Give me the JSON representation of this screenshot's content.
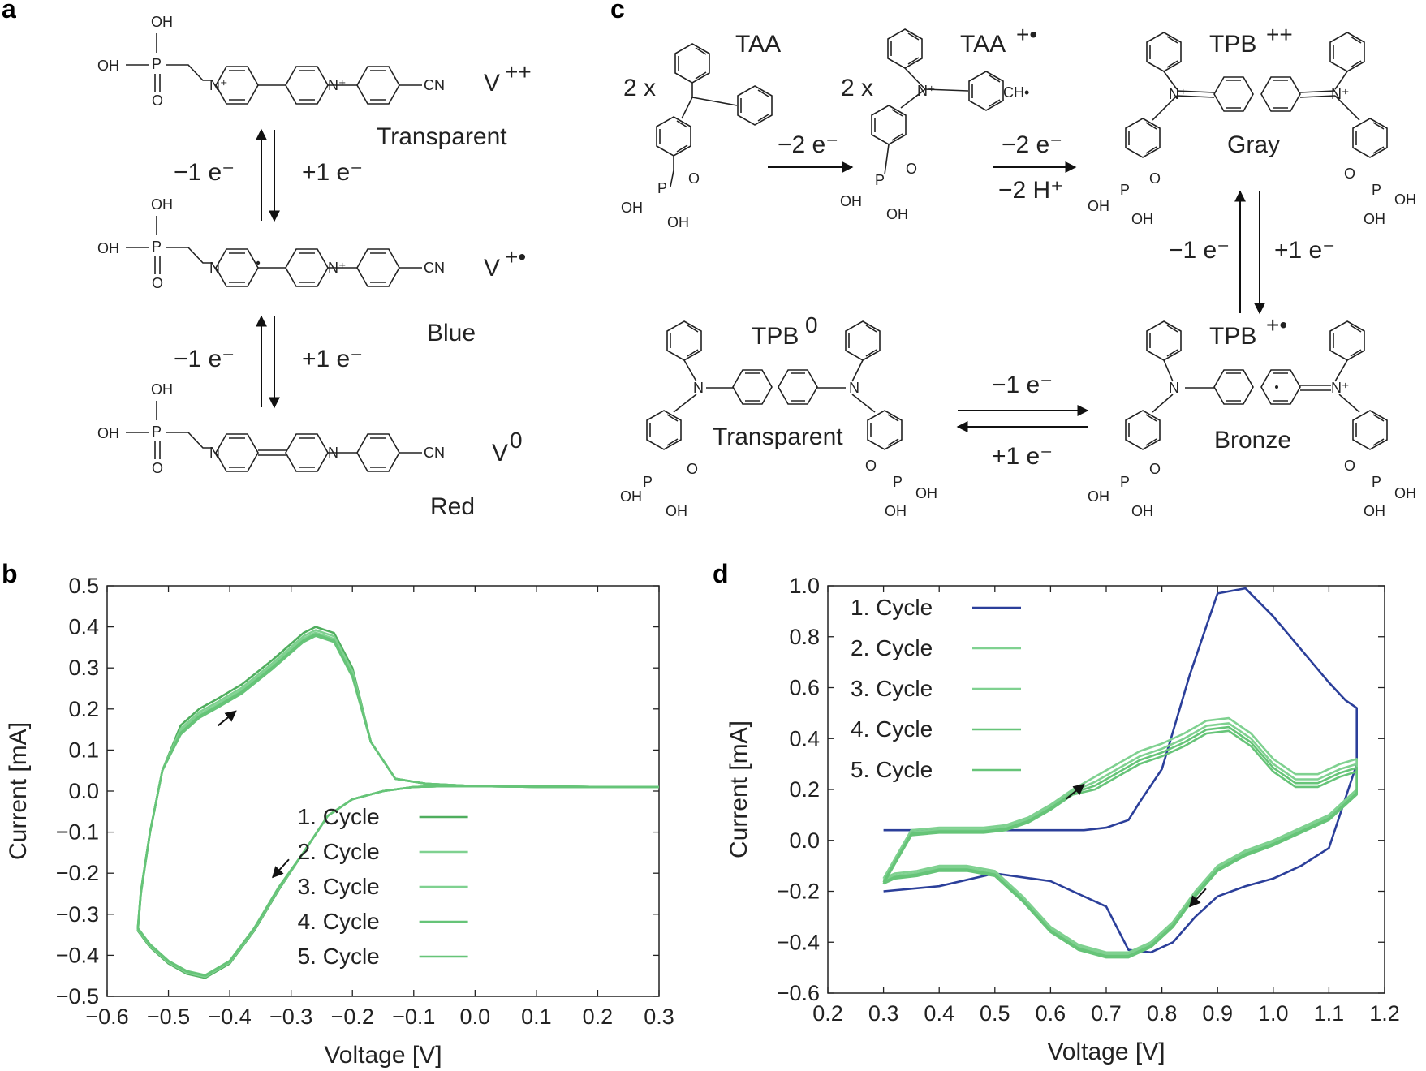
{
  "panels": {
    "a": "a",
    "b": "b",
    "c": "c",
    "d": "d"
  },
  "panel_a": {
    "species": [
      {
        "label": "V",
        "sup": "++",
        "color_name": "Transparent"
      },
      {
        "label": "V",
        "sup": "+•",
        "color_name": "Blue"
      },
      {
        "label": "V",
        "sup": "0",
        "color_name": "Red"
      }
    ],
    "steps": [
      {
        "left": "−1 e⁻",
        "right": "+1 e⁻"
      },
      {
        "left": "−1 e⁻",
        "right": "+1 e⁻"
      }
    ],
    "atoms": {
      "oh": "OH",
      "p": "P",
      "o": "O",
      "n": "N",
      "nplus": "N⁺",
      "cn": "CN"
    }
  },
  "panel_c": {
    "taa": "TAA",
    "taa_rad": "TAA",
    "taa_rad_sup": "+•",
    "tpb_dication": "TPB",
    "tpb_dication_sup": "++",
    "tpb_radical": "TPB",
    "tpb_radical_sup": "+•",
    "tpb_neutral": "TPB",
    "tpb_neutral_sup": "0",
    "coef1": "2 x",
    "coef2": "2 x",
    "step1": "−2 e⁻",
    "step2_top": "−2 e⁻",
    "step2_bottom": "−2 H⁺",
    "step3_left": "−1 e⁻",
    "step3_right": "+1 e⁻",
    "step4_top": "−1 e⁻",
    "step4_bottom": "+1 e⁻",
    "color_gray": "Gray",
    "color_bronze": "Bronze",
    "color_transparent": "Transparent",
    "ch_radical": "CH•"
  },
  "colors": {
    "blue": "#2b3f9a",
    "green_dark": "#4fae5e",
    "green_light": "#7fd190",
    "green_mid": "#66c478",
    "arrow": "#111111"
  },
  "chart_data": [
    {
      "type": "line",
      "panel": "b",
      "xlabel": "Voltage [V]",
      "ylabel": "Current [mA]",
      "xlim": [
        -0.6,
        0.3
      ],
      "ylim": [
        -0.5,
        0.5
      ],
      "xticks": [
        -0.6,
        -0.5,
        -0.4,
        -0.3,
        -0.2,
        -0.1,
        0.0,
        0.1,
        0.2,
        0.3
      ],
      "xtick_labels": [
        "−0.6",
        "−0.5",
        "−0.4",
        "−0.3",
        "−0.2",
        "−0.1",
        "0.0",
        "0.1",
        "0.2",
        "0.3"
      ],
      "yticks": [
        -0.5,
        -0.4,
        -0.3,
        -0.2,
        -0.1,
        0.0,
        0.1,
        0.2,
        0.3,
        0.4,
        0.5
      ],
      "ytick_labels": [
        "−0.5",
        "−0.4",
        "−0.3",
        "−0.2",
        "−0.1",
        "0.0",
        "0.1",
        "0.2",
        "0.3",
        "0.4",
        "0.5"
      ],
      "legend_position": "lower-right",
      "series": [
        {
          "name": "1. Cycle",
          "color": "#4fae5e",
          "offset": 0.0,
          "x": [
            0.3,
            0.2,
            0.1,
            0.0,
            -0.08,
            -0.13,
            -0.17,
            -0.2,
            -0.23,
            -0.26,
            -0.28,
            -0.33,
            -0.38,
            -0.42,
            -0.45,
            -0.48,
            -0.51,
            -0.53,
            -0.545,
            -0.55,
            -0.53,
            -0.5,
            -0.47,
            -0.44,
            -0.4,
            -0.36,
            -0.32,
            -0.28,
            -0.24,
            -0.2,
            -0.15,
            -0.1,
            -0.05,
            0.0,
            0.1,
            0.2,
            0.3
          ],
          "y": [
            0.01,
            0.01,
            0.012,
            0.012,
            0.018,
            0.03,
            0.12,
            0.3,
            0.385,
            0.4,
            0.385,
            0.32,
            0.26,
            0.225,
            0.2,
            0.16,
            0.05,
            -0.1,
            -0.25,
            -0.34,
            -0.38,
            -0.42,
            -0.445,
            -0.455,
            -0.42,
            -0.34,
            -0.24,
            -0.15,
            -0.06,
            -0.02,
            0.0,
            0.01,
            0.012,
            0.012,
            0.01,
            0.01,
            0.01
          ]
        },
        {
          "name": "2. Cycle",
          "color": "#7fd190",
          "offset": -0.008,
          "x": [
            0.3,
            0.2,
            0.1,
            0.0,
            -0.08,
            -0.13,
            -0.17,
            -0.2,
            -0.23,
            -0.26,
            -0.28,
            -0.33,
            -0.38,
            -0.42,
            -0.45,
            -0.48,
            -0.51,
            -0.53,
            -0.545,
            -0.55,
            -0.53,
            -0.5,
            -0.47,
            -0.44,
            -0.4,
            -0.36,
            -0.32,
            -0.28,
            -0.24,
            -0.2,
            -0.15,
            -0.1,
            -0.05,
            0.0,
            0.1,
            0.2,
            0.3
          ],
          "y": [
            0.01,
            0.01,
            0.012,
            0.012,
            0.018,
            0.03,
            0.12,
            0.3,
            0.385,
            0.4,
            0.385,
            0.32,
            0.26,
            0.225,
            0.2,
            0.16,
            0.05,
            -0.1,
            -0.25,
            -0.34,
            -0.38,
            -0.42,
            -0.445,
            -0.455,
            -0.42,
            -0.34,
            -0.24,
            -0.15,
            -0.06,
            -0.02,
            0.0,
            0.01,
            0.012,
            0.012,
            0.01,
            0.01,
            0.01
          ]
        },
        {
          "name": "3. Cycle",
          "color": "#7fd190",
          "offset": -0.014,
          "x": [
            0.3,
            0.2,
            0.1,
            0.0,
            -0.08,
            -0.13,
            -0.17,
            -0.2,
            -0.23,
            -0.26,
            -0.28,
            -0.33,
            -0.38,
            -0.42,
            -0.45,
            -0.48,
            -0.51,
            -0.53,
            -0.545,
            -0.55,
            -0.53,
            -0.5,
            -0.47,
            -0.44,
            -0.4,
            -0.36,
            -0.32,
            -0.28,
            -0.24,
            -0.2,
            -0.15,
            -0.1,
            -0.05,
            0.0,
            0.1,
            0.2,
            0.3
          ],
          "y": [
            0.01,
            0.01,
            0.012,
            0.012,
            0.018,
            0.03,
            0.12,
            0.3,
            0.385,
            0.4,
            0.385,
            0.32,
            0.26,
            0.225,
            0.2,
            0.16,
            0.05,
            -0.1,
            -0.25,
            -0.34,
            -0.38,
            -0.42,
            -0.445,
            -0.455,
            -0.42,
            -0.34,
            -0.24,
            -0.15,
            -0.06,
            -0.02,
            0.0,
            0.01,
            0.012,
            0.012,
            0.01,
            0.01,
            0.01
          ]
        },
        {
          "name": "4. Cycle",
          "color": "#66c478",
          "offset": -0.018,
          "x": [
            0.3,
            0.2,
            0.1,
            0.0,
            -0.08,
            -0.13,
            -0.17,
            -0.2,
            -0.23,
            -0.26,
            -0.28,
            -0.33,
            -0.38,
            -0.42,
            -0.45,
            -0.48,
            -0.51,
            -0.53,
            -0.545,
            -0.55,
            -0.53,
            -0.5,
            -0.47,
            -0.44,
            -0.4,
            -0.36,
            -0.32,
            -0.28,
            -0.24,
            -0.2,
            -0.15,
            -0.1,
            -0.05,
            0.0,
            0.1,
            0.2,
            0.3
          ],
          "y": [
            0.01,
            0.01,
            0.012,
            0.012,
            0.018,
            0.03,
            0.12,
            0.3,
            0.385,
            0.4,
            0.385,
            0.32,
            0.26,
            0.225,
            0.2,
            0.16,
            0.05,
            -0.1,
            -0.25,
            -0.34,
            -0.38,
            -0.42,
            -0.445,
            -0.455,
            -0.42,
            -0.34,
            -0.24,
            -0.15,
            -0.06,
            -0.02,
            0.0,
            0.01,
            0.012,
            0.012,
            0.01,
            0.01,
            0.01
          ]
        },
        {
          "name": "5. Cycle",
          "color": "#66c478",
          "offset": -0.022,
          "x": [
            0.3,
            0.2,
            0.1,
            0.0,
            -0.08,
            -0.13,
            -0.17,
            -0.2,
            -0.23,
            -0.26,
            -0.28,
            -0.33,
            -0.38,
            -0.42,
            -0.45,
            -0.48,
            -0.51,
            -0.53,
            -0.545,
            -0.55,
            -0.53,
            -0.5,
            -0.47,
            -0.44,
            -0.4,
            -0.36,
            -0.32,
            -0.28,
            -0.24,
            -0.2,
            -0.15,
            -0.1,
            -0.05,
            0.0,
            0.1,
            0.2,
            0.3
          ],
          "y": [
            0.01,
            0.01,
            0.012,
            0.012,
            0.018,
            0.03,
            0.12,
            0.3,
            0.385,
            0.4,
            0.385,
            0.32,
            0.26,
            0.225,
            0.2,
            0.16,
            0.05,
            -0.1,
            -0.25,
            -0.34,
            -0.38,
            -0.42,
            -0.445,
            -0.455,
            -0.42,
            -0.34,
            -0.24,
            -0.15,
            -0.06,
            -0.02,
            0.0,
            0.01,
            0.012,
            0.012,
            0.01,
            0.01,
            0.01
          ]
        }
      ],
      "arrows": [
        {
          "x": -0.39,
          "y": 0.195,
          "dir": "up-right"
        },
        {
          "x": -0.33,
          "y": -0.21,
          "dir": "down-left"
        }
      ]
    },
    {
      "type": "line",
      "panel": "d",
      "xlabel": "Voltage [V]",
      "ylabel": "Current [mA]",
      "xlim": [
        0.2,
        1.2
      ],
      "ylim": [
        -0.6,
        1.0
      ],
      "xticks": [
        0.2,
        0.3,
        0.4,
        0.5,
        0.6,
        0.7,
        0.8,
        0.9,
        1.0,
        1.1,
        1.2
      ],
      "xtick_labels": [
        "0.2",
        "0.3",
        "0.4",
        "0.5",
        "0.6",
        "0.7",
        "0.8",
        "0.9",
        "1.0",
        "1.1",
        "1.2"
      ],
      "yticks": [
        -0.6,
        -0.4,
        -0.2,
        0.0,
        0.2,
        0.4,
        0.6,
        0.8,
        1.0
      ],
      "ytick_labels": [
        "−0.6",
        "−0.4",
        "−0.2",
        "0.0",
        "0.2",
        "0.4",
        "0.6",
        "0.8",
        "1.0"
      ],
      "legend_position": "top-left",
      "series": [
        {
          "name": "1. Cycle",
          "color": "#2b3f9a",
          "x": [
            0.3,
            0.4,
            0.5,
            0.6,
            0.7,
            0.74,
            0.78,
            0.82,
            0.86,
            0.9,
            0.95,
            1.0,
            1.05,
            1.1,
            1.15,
            1.15,
            1.13,
            1.1,
            1.05,
            1.0,
            0.95,
            0.9,
            0.85,
            0.8,
            0.76,
            0.74,
            0.7,
            0.66,
            0.62,
            0.58,
            0.55,
            0.5,
            0.45,
            0.4,
            0.35,
            0.3
          ],
          "y": [
            -0.2,
            -0.18,
            -0.13,
            -0.16,
            -0.26,
            -0.43,
            -0.44,
            -0.4,
            -0.3,
            -0.22,
            -0.18,
            -0.15,
            -0.1,
            -0.03,
            0.3,
            0.52,
            0.55,
            0.62,
            0.75,
            0.88,
            0.99,
            0.97,
            0.65,
            0.28,
            0.15,
            0.08,
            0.05,
            0.04,
            0.04,
            0.04,
            0.04,
            0.04,
            0.04,
            0.04,
            0.04,
            0.04
          ]
        },
        {
          "name": "2. Cycle",
          "color": "#7fd190",
          "shape": "green",
          "offset": 0.0
        },
        {
          "name": "3. Cycle",
          "color": "#7fd190",
          "shape": "green",
          "offset": -0.02
        },
        {
          "name": "4. Cycle",
          "color": "#66c478",
          "shape": "green",
          "offset": -0.035
        },
        {
          "name": "5. Cycle",
          "color": "#66c478",
          "shape": "green",
          "offset": -0.05
        }
      ],
      "green_shape": {
        "x": [
          0.3,
          0.32,
          0.36,
          0.4,
          0.45,
          0.5,
          0.55,
          0.6,
          0.65,
          0.7,
          0.74,
          0.78,
          0.82,
          0.86,
          0.9,
          0.95,
          1.0,
          1.05,
          1.1,
          1.15,
          1.15,
          1.12,
          1.08,
          1.04,
          1.0,
          0.96,
          0.92,
          0.88,
          0.84,
          0.8,
          0.76,
          0.72,
          0.68,
          0.64,
          0.6,
          0.56,
          0.52,
          0.48,
          0.44,
          0.4,
          0.35,
          0.3
        ],
        "y": [
          -0.15,
          -0.13,
          -0.12,
          -0.1,
          -0.1,
          -0.12,
          -0.22,
          -0.34,
          -0.41,
          -0.44,
          -0.44,
          -0.4,
          -0.32,
          -0.2,
          -0.1,
          -0.04,
          0.0,
          0.05,
          0.1,
          0.2,
          0.32,
          0.3,
          0.26,
          0.26,
          0.32,
          0.42,
          0.48,
          0.47,
          0.42,
          0.38,
          0.35,
          0.3,
          0.25,
          0.2,
          0.14,
          0.09,
          0.06,
          0.05,
          0.05,
          0.05,
          0.04,
          -0.15
        ]
      },
      "arrows": [
        {
          "x": 0.66,
          "y": 0.22,
          "dir": "up-right"
        },
        {
          "x": 0.85,
          "y": -0.26,
          "dir": "down-left"
        }
      ]
    }
  ]
}
